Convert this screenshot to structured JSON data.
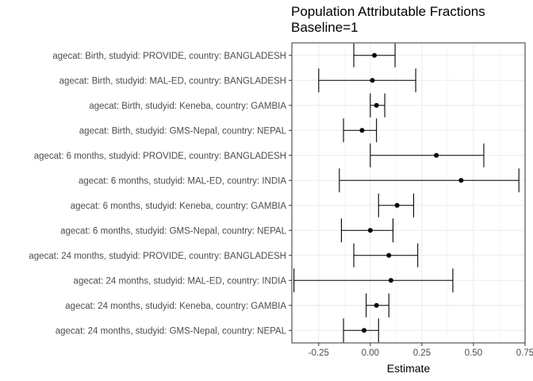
{
  "chart_data": {
    "type": "forest",
    "title": "Population Attributable Fractions",
    "subtitle": "Baseline=1",
    "xlabel": "Estimate",
    "ylabel": "",
    "xlim": [
      -0.38,
      0.75
    ],
    "x_ticks": [
      -0.25,
      0.0,
      0.25,
      0.5,
      0.75
    ],
    "x_tick_labels": [
      "-0.25",
      "0.00",
      "0.25",
      "0.50",
      "0.75"
    ],
    "grid": true,
    "rows": [
      {
        "label": "agecat: Birth, studyid: PROVIDE, country: BANGLADESH",
        "estimate": 0.02,
        "lower": -0.08,
        "upper": 0.12
      },
      {
        "label": "agecat: Birth, studyid: MAL-ED, country: BANGLADESH",
        "estimate": 0.01,
        "lower": -0.25,
        "upper": 0.22
      },
      {
        "label": "agecat: Birth, studyid: Keneba, country: GAMBIA",
        "estimate": 0.03,
        "lower": 0.0,
        "upper": 0.07
      },
      {
        "label": "agecat: Birth, studyid: GMS-Nepal, country: NEPAL",
        "estimate": -0.04,
        "lower": -0.13,
        "upper": 0.03
      },
      {
        "label": "agecat: 6 months, studyid: PROVIDE, country: BANGLADESH",
        "estimate": 0.32,
        "lower": 0.0,
        "upper": 0.55
      },
      {
        "label": "agecat: 6 months, studyid: MAL-ED, country: INDIA",
        "estimate": 0.44,
        "lower": -0.15,
        "upper": 0.72
      },
      {
        "label": "agecat: 6 months, studyid: Keneba, country: GAMBIA",
        "estimate": 0.13,
        "lower": 0.04,
        "upper": 0.21
      },
      {
        "label": "agecat: 6 months, studyid: GMS-Nepal, country: NEPAL",
        "estimate": 0.0,
        "lower": -0.14,
        "upper": 0.11
      },
      {
        "label": "agecat: 24 months, studyid: PROVIDE, country: BANGLADESH",
        "estimate": 0.09,
        "lower": -0.08,
        "upper": 0.23
      },
      {
        "label": "agecat: 24 months, studyid: MAL-ED, country: INDIA",
        "estimate": 0.1,
        "lower": -0.37,
        "upper": 0.4
      },
      {
        "label": "agecat: 24 months, studyid: Keneba, country: GAMBIA",
        "estimate": 0.03,
        "lower": -0.02,
        "upper": 0.09
      },
      {
        "label": "agecat: 24 months, studyid: GMS-Nepal, country: NEPAL",
        "estimate": -0.03,
        "lower": -0.13,
        "upper": 0.04
      }
    ],
    "colors": {
      "panel_border": "#333333",
      "grid_major": "#ebebeb",
      "grid_minor": "#f5f5f5",
      "mark": "#000000",
      "tick_text": "#4d4d4d"
    }
  }
}
